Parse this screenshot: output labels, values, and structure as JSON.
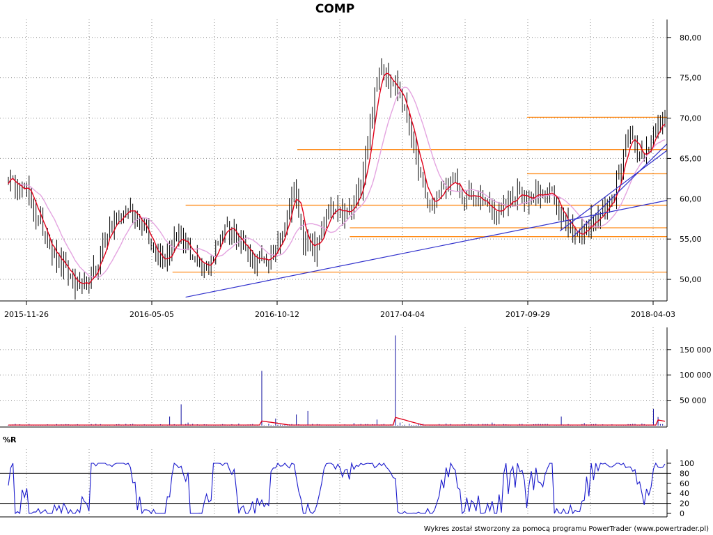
{
  "title": "COMP",
  "credit": "Wykres został stworzony za pomocą programu PowerTrader (www.powertrader.pl)",
  "colors": {
    "candle": "#000000",
    "ma_short": "#e0001a",
    "ma_long": "#e4a4e0",
    "support": "#ff8c1a",
    "trend": "#3030cc",
    "volume": "#1010a0",
    "volume_ma": "#e0001a",
    "williams": "#1a1acc"
  },
  "chart_data": [
    {
      "type": "line",
      "panel": "price",
      "title": "COMP",
      "x_ticks": [
        "2015-11-26",
        "2016-05-05",
        "2016-10-12",
        "2017-04-04",
        "2017-09-29",
        "2018-04-03"
      ],
      "y_ticks": [
        "50,00",
        "55,00",
        "60,00",
        "65,00",
        "70,00",
        "75,00",
        "80,00"
      ],
      "ylim": [
        47.5,
        80.5
      ],
      "grid": true,
      "anchors": [
        [
          0,
          62.5
        ],
        [
          8,
          61
        ],
        [
          15,
          56
        ],
        [
          22,
          52
        ],
        [
          30,
          49.2
        ],
        [
          34,
          49
        ],
        [
          38,
          51.5
        ],
        [
          43,
          56
        ],
        [
          48,
          57.5
        ],
        [
          52,
          59
        ],
        [
          57,
          57.5
        ],
        [
          62,
          54
        ],
        [
          68,
          52.5
        ],
        [
          73,
          55.5
        ],
        [
          78,
          54
        ],
        [
          84,
          51
        ],
        [
          89,
          53
        ],
        [
          94,
          57
        ],
        [
          99,
          55.5
        ],
        [
          105,
          53
        ],
        [
          110,
          52
        ],
        [
          115,
          53
        ],
        [
          120,
          57
        ],
        [
          124,
          61.5
        ],
        [
          128,
          55
        ],
        [
          133,
          53.5
        ],
        [
          137,
          57
        ],
        [
          141,
          58.5
        ],
        [
          146,
          58
        ],
        [
          150,
          59
        ],
        [
          153,
          62
        ],
        [
          156,
          67
        ],
        [
          159,
          73
        ],
        [
          162,
          77
        ],
        [
          165,
          75
        ],
        [
          168,
          74
        ],
        [
          171,
          72
        ],
        [
          174,
          69
        ],
        [
          177,
          65
        ],
        [
          181,
          60
        ],
        [
          185,
          59.5
        ],
        [
          189,
          61.5
        ],
        [
          193,
          62
        ],
        [
          198,
          60
        ],
        [
          202,
          60.5
        ],
        [
          207,
          59
        ],
        [
          212,
          58.5
        ],
        [
          217,
          59.5
        ],
        [
          222,
          60.5
        ],
        [
          227,
          60
        ],
        [
          232,
          61
        ],
        [
          236,
          60.5
        ],
        [
          240,
          58
        ],
        [
          244,
          56.5
        ],
        [
          248,
          55.5
        ],
        [
          253,
          57
        ],
        [
          258,
          58
        ],
        [
          263,
          61
        ],
        [
          267,
          66
        ],
        [
          270,
          68.5
        ],
        [
          273,
          65.5
        ],
        [
          276,
          65
        ],
        [
          279,
          67.5
        ],
        [
          282,
          69.5
        ],
        [
          285,
          69.5
        ]
      ],
      "support_lines": [
        {
          "from": 0.27,
          "value": 59.2
        },
        {
          "from": 0.44,
          "value": 66.1
        },
        {
          "from": 0.52,
          "value": 56.4
        },
        {
          "from": 0.52,
          "value": 55.3
        },
        {
          "from": 0.25,
          "value": 50.9
        },
        {
          "from": 0.79,
          "value": 70.1
        },
        {
          "from": 0.79,
          "value": 63.1
        }
      ],
      "trend_lines": [
        {
          "from": [
            0.27,
            47.8
          ],
          "to": [
            1.0,
            59.8
          ]
        },
        {
          "from": [
            0.86,
            55.3
          ],
          "to": [
            1.0,
            66.8
          ]
        },
        {
          "from": [
            0.84,
            56.0
          ],
          "to": [
            1.0,
            66.0
          ]
        }
      ]
    },
    {
      "type": "bar",
      "panel": "volume",
      "y_ticks": [
        "50 000",
        "100 000",
        "150 000"
      ],
      "ylim": [
        0,
        180000
      ],
      "grid": true,
      "spikes": [
        [
          20,
          2000
        ],
        [
          40,
          3000
        ],
        [
          70,
          18000
        ],
        [
          75,
          42000
        ],
        [
          78,
          6000
        ],
        [
          100,
          4000
        ],
        [
          110,
          108000
        ],
        [
          116,
          14000
        ],
        [
          125,
          22000
        ],
        [
          130,
          29000
        ],
        [
          150,
          5000
        ],
        [
          160,
          12000
        ],
        [
          168,
          178000
        ],
        [
          170,
          6000
        ],
        [
          190,
          4000
        ],
        [
          210,
          6000
        ],
        [
          240,
          18000
        ],
        [
          250,
          5000
        ],
        [
          275,
          4000
        ],
        [
          280,
          33000
        ],
        [
          282,
          17000
        ]
      ],
      "ma_bumps": [
        [
          110,
          8000
        ],
        [
          168,
          15000
        ],
        [
          282,
          10000
        ]
      ]
    },
    {
      "type": "line",
      "panel": "williams",
      "title": "%R",
      "y_ticks": [
        "0",
        "20",
        "40",
        "60",
        "80",
        "100"
      ],
      "ylim": [
        0,
        100
      ],
      "levels": [
        20,
        80
      ]
    }
  ]
}
